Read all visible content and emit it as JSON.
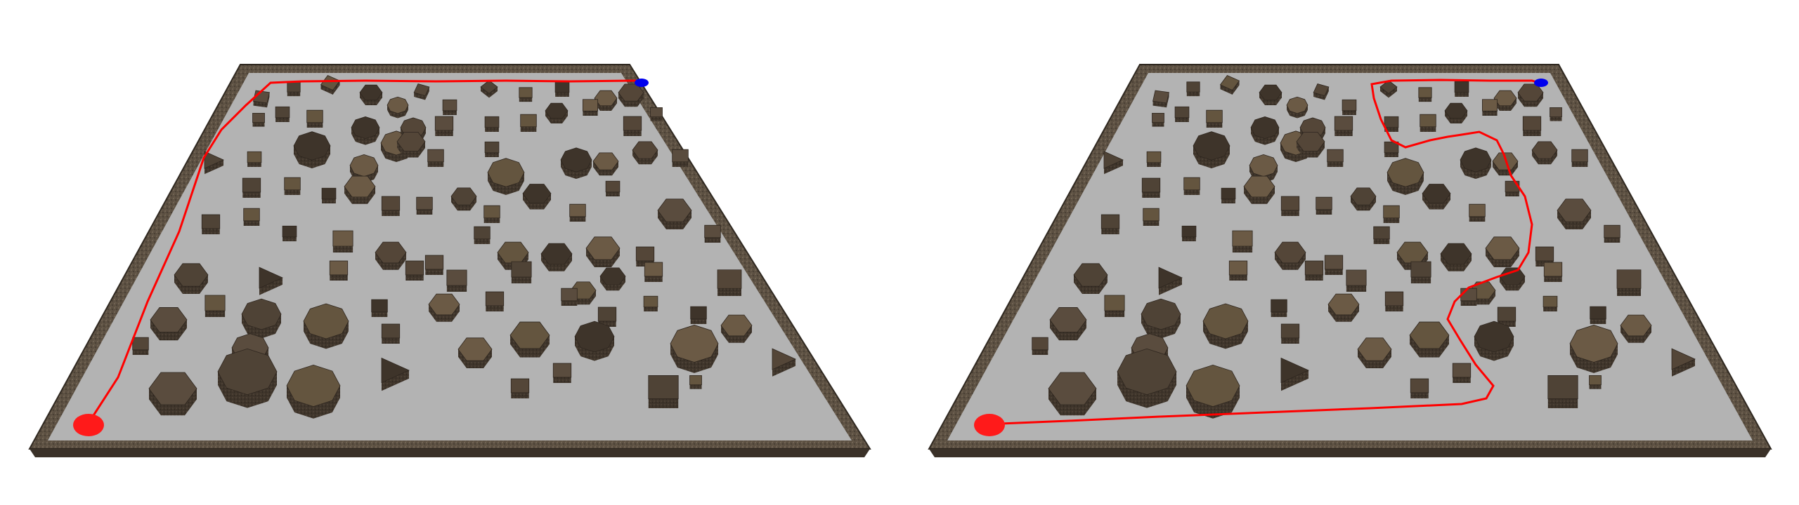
{
  "colors": {
    "background": "#ffffff",
    "floor": "#b3b3b3",
    "wall": "#5c5042",
    "wall_edge": "#3d352c",
    "path": "#ff0000",
    "start": "#ff0000",
    "goal": "#0000ff",
    "obstacle_top": "#5a4c3e",
    "obstacle_side": "#3f352b"
  },
  "panels": [
    {
      "name": "left-environment",
      "path_style": "straight-along-walls"
    },
    {
      "name": "right-environment",
      "path_style": "through-obstacles"
    }
  ]
}
